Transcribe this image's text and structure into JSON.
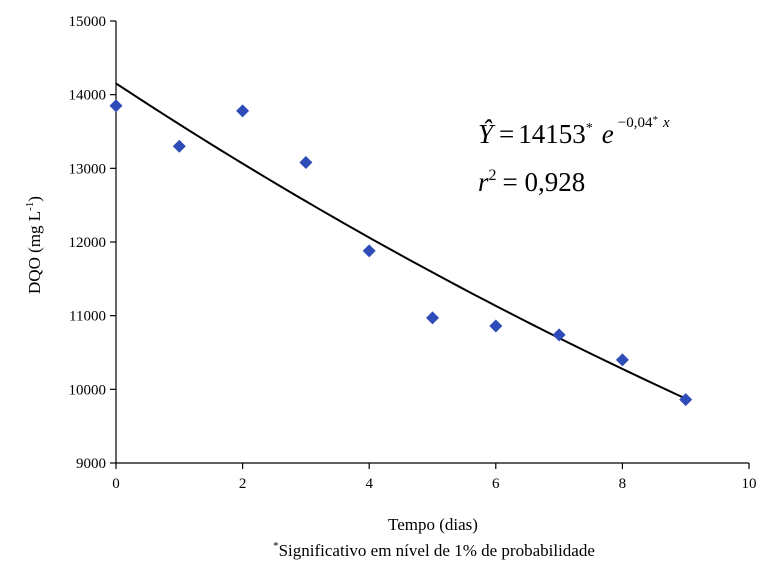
{
  "chart_data": {
    "type": "scatter",
    "title": "",
    "xlabel": "Tempo (dias)",
    "ylabel_main": "DQO (mg L",
    "ylabel_sup": "-1",
    "ylabel_close": ")",
    "xlim": [
      0,
      10
    ],
    "ylim": [
      9000,
      15000
    ],
    "xticks": [
      0,
      2,
      4,
      6,
      8,
      10
    ],
    "yticks": [
      9000,
      10000,
      11000,
      12000,
      13000,
      14000,
      15000
    ],
    "grid": false,
    "marker_color": "#2E4BB8",
    "line_color": "#000000",
    "points": {
      "x": [
        0,
        1,
        2,
        3,
        4,
        5,
        6,
        7,
        8,
        9
      ],
      "y": [
        13850,
        13300,
        13780,
        13080,
        11880,
        10970,
        10860,
        10740,
        10400,
        9860
      ]
    },
    "fit": {
      "model": "exponential",
      "a": 14153,
      "b": -0.04,
      "x_range": [
        0,
        9
      ]
    },
    "equation": {
      "lhs": "Ŷ",
      "eq_sign": "=",
      "coef": "14153",
      "star": "*",
      "e": "e",
      "exp": "−0,04",
      "exp_star": "*",
      "exp_x": "x",
      "r2_r": "r",
      "r2_sup": "2",
      "r2_val": "= 0,928"
    },
    "footnote_mark": "*",
    "footnote": "Significativo em nível de 1% de probabilidade"
  }
}
